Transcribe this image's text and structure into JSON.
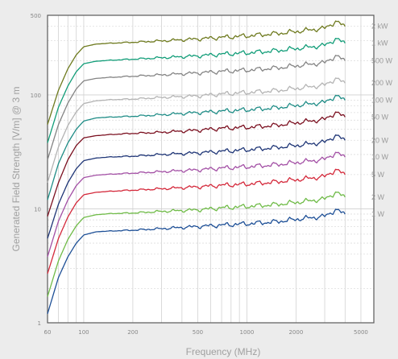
{
  "chart_data": {
    "type": "line",
    "xlabel": "Frequency (MHz)",
    "ylabel": "Generated Field Strength [V/m] @ 3 m",
    "x_scale": "log",
    "y_scale": "log",
    "xlim": [
      60,
      6000
    ],
    "ylim": [
      1,
      500
    ],
    "grid": true,
    "legend": "right",
    "x_ticks": [
      {
        "value": 60,
        "label": "60"
      },
      {
        "value": 100,
        "label": "100"
      },
      {
        "value": 200,
        "label": "200"
      },
      {
        "value": 500,
        "label": "500"
      },
      {
        "value": 1000,
        "label": "1000"
      },
      {
        "value": 2000,
        "label": "2000"
      },
      {
        "value": 5000,
        "label": "5000"
      }
    ],
    "y_ticks": [
      {
        "value": 1,
        "label": "1"
      },
      {
        "value": 10,
        "label": "10"
      },
      {
        "value": 100,
        "label": "100"
      },
      {
        "value": 500,
        "label": "500"
      }
    ],
    "x": [
      60,
      70,
      80,
      90,
      100,
      120,
      150,
      200,
      300,
      500,
      700,
      1000,
      1500,
      2000,
      3000,
      3500,
      4000
    ],
    "series": [
      {
        "name": "2 kW",
        "color": "#6e7a1e",
        "values": [
          55,
          110,
          170,
          225,
          265,
          280,
          285,
          290,
          298,
          310,
          320,
          330,
          345,
          360,
          385,
          440,
          400
        ]
      },
      {
        "name": "1 kW",
        "color": "#119d78",
        "values": [
          38,
          78,
          120,
          160,
          188,
          198,
          202,
          206,
          212,
          220,
          228,
          234,
          244,
          255,
          272,
          310,
          285
        ]
      },
      {
        "name": "500 W",
        "color": "#848484",
        "values": [
          27,
          55,
          85,
          113,
          133,
          140,
          143,
          146,
          150,
          156,
          161,
          165,
          172,
          180,
          192,
          220,
          200
        ]
      },
      {
        "name": "200 W",
        "color": "#b4b4b4",
        "values": [
          17,
          35,
          54,
          71,
          84,
          89,
          91,
          92,
          95,
          98,
          102,
          105,
          109,
          114,
          122,
          139,
          127
        ]
      },
      {
        "name": "100 W",
        "color": "#1e8c86",
        "values": [
          12,
          25,
          38,
          50,
          59,
          63,
          64,
          65,
          67,
          70,
          72,
          74,
          77,
          81,
          86,
          98,
          90
        ]
      },
      {
        "name": "50 W",
        "color": "#7b1020",
        "values": [
          8.6,
          17,
          27,
          36,
          42,
          44,
          45,
          46,
          47,
          49,
          51,
          52,
          54,
          57,
          61,
          70,
          64
        ]
      },
      {
        "name": "20 W",
        "color": "#1e3576",
        "values": [
          5.5,
          11,
          17,
          22.5,
          26.5,
          28,
          28.6,
          29,
          30,
          31,
          32,
          33,
          34.5,
          36,
          38.5,
          44,
          40
        ]
      },
      {
        "name": "10 W",
        "color": "#a350a5",
        "values": [
          3.8,
          7.8,
          12,
          16,
          18.8,
          19.8,
          20.2,
          20.6,
          21.2,
          22,
          22.8,
          23.4,
          24.4,
          25.5,
          27.2,
          31,
          28.5
        ]
      },
      {
        "name": "5 W",
        "color": "#d4283a",
        "values": [
          2.7,
          5.5,
          8.5,
          11.3,
          13.3,
          14,
          14.3,
          14.6,
          15,
          15.6,
          16.1,
          16.5,
          17.2,
          18,
          19.2,
          22,
          20
        ]
      },
      {
        "name": "2 W",
        "color": "#6fbb47",
        "values": [
          1.7,
          3.5,
          5.4,
          7.1,
          8.4,
          8.9,
          9.1,
          9.2,
          9.5,
          9.8,
          10.2,
          10.5,
          10.9,
          11.4,
          12.2,
          13.9,
          12.7
        ]
      },
      {
        "name": "1 W",
        "color": "#1d4f96",
        "values": [
          1.2,
          2.5,
          3.8,
          5,
          5.9,
          6.3,
          6.4,
          6.5,
          6.7,
          7,
          7.2,
          7.4,
          7.7,
          8.1,
          8.6,
          9.8,
          9
        ]
      }
    ]
  }
}
